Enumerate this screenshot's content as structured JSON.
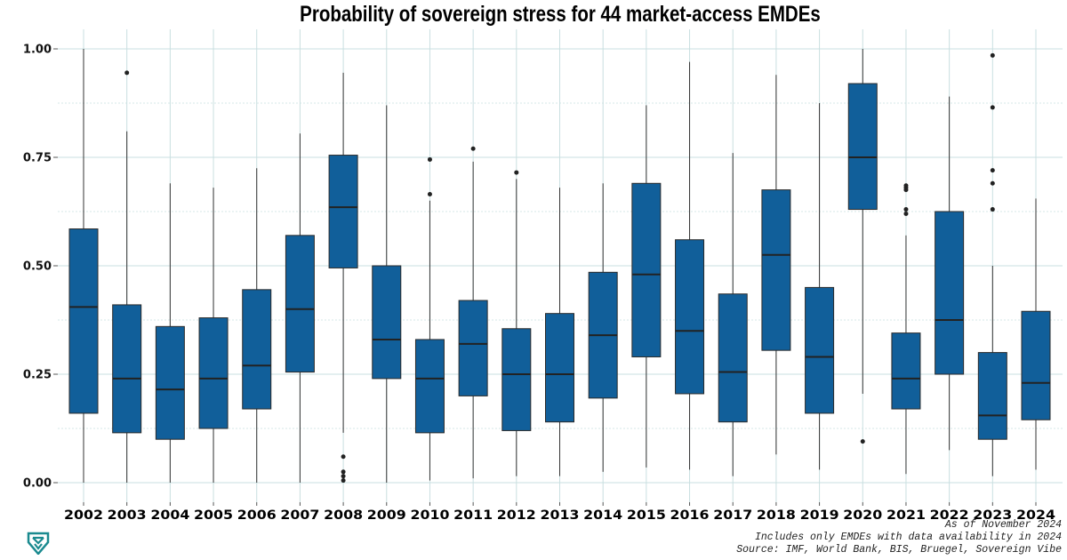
{
  "chart_data": {
    "type": "boxplot",
    "title": "Probability of sovereign stress for 44 market-access EMDEs",
    "xlabel": "",
    "ylabel": "",
    "ylim": [
      0,
      1
    ],
    "yticks": [
      "0.00",
      "0.25",
      "0.50",
      "0.75",
      "1.00"
    ],
    "grid": true,
    "legend": "none",
    "box_color": "#115f9a",
    "categories": [
      "2002",
      "2003",
      "2004",
      "2005",
      "2006",
      "2007",
      "2008",
      "2009",
      "2010",
      "2011",
      "2012",
      "2013",
      "2014",
      "2015",
      "2016",
      "2017",
      "2018",
      "2019",
      "2020",
      "2021",
      "2022",
      "2023",
      "2024"
    ],
    "boxes": [
      {
        "low": 0.0,
        "q1": 0.16,
        "median": 0.405,
        "q3": 0.585,
        "high": 1.0,
        "outliers": []
      },
      {
        "low": 0.0,
        "q1": 0.115,
        "median": 0.24,
        "q3": 0.41,
        "high": 0.81,
        "outliers": [
          0.945
        ]
      },
      {
        "low": 0.0,
        "q1": 0.1,
        "median": 0.215,
        "q3": 0.36,
        "high": 0.69,
        "outliers": []
      },
      {
        "low": 0.0,
        "q1": 0.125,
        "median": 0.24,
        "q3": 0.38,
        "high": 0.68,
        "outliers": []
      },
      {
        "low": 0.0,
        "q1": 0.17,
        "median": 0.27,
        "q3": 0.445,
        "high": 0.725,
        "outliers": []
      },
      {
        "low": 0.0,
        "q1": 0.255,
        "median": 0.4,
        "q3": 0.57,
        "high": 0.805,
        "outliers": []
      },
      {
        "low": 0.115,
        "q1": 0.495,
        "median": 0.635,
        "q3": 0.755,
        "high": 0.945,
        "outliers": [
          0.06,
          0.025,
          0.015,
          0.005
        ]
      },
      {
        "low": 0.0,
        "q1": 0.24,
        "median": 0.33,
        "q3": 0.5,
        "high": 0.87,
        "outliers": []
      },
      {
        "low": 0.005,
        "q1": 0.115,
        "median": 0.24,
        "q3": 0.33,
        "high": 0.65,
        "outliers": [
          0.665,
          0.745
        ]
      },
      {
        "low": 0.01,
        "q1": 0.2,
        "median": 0.32,
        "q3": 0.42,
        "high": 0.74,
        "outliers": [
          0.77
        ]
      },
      {
        "low": 0.015,
        "q1": 0.12,
        "median": 0.25,
        "q3": 0.355,
        "high": 0.7,
        "outliers": [
          0.715
        ]
      },
      {
        "low": 0.015,
        "q1": 0.14,
        "median": 0.25,
        "q3": 0.39,
        "high": 0.68,
        "outliers": []
      },
      {
        "low": 0.025,
        "q1": 0.195,
        "median": 0.34,
        "q3": 0.485,
        "high": 0.69,
        "outliers": []
      },
      {
        "low": 0.035,
        "q1": 0.29,
        "median": 0.48,
        "q3": 0.69,
        "high": 0.87,
        "outliers": []
      },
      {
        "low": 0.03,
        "q1": 0.205,
        "median": 0.35,
        "q3": 0.56,
        "high": 0.97,
        "outliers": []
      },
      {
        "low": 0.015,
        "q1": 0.14,
        "median": 0.255,
        "q3": 0.435,
        "high": 0.76,
        "outliers": []
      },
      {
        "low": 0.065,
        "q1": 0.305,
        "median": 0.525,
        "q3": 0.675,
        "high": 0.94,
        "outliers": []
      },
      {
        "low": 0.03,
        "q1": 0.16,
        "median": 0.29,
        "q3": 0.45,
        "high": 0.875,
        "outliers": []
      },
      {
        "low": 0.205,
        "q1": 0.63,
        "median": 0.75,
        "q3": 0.92,
        "high": 1.0,
        "outliers": [
          0.095
        ]
      },
      {
        "low": 0.02,
        "q1": 0.17,
        "median": 0.24,
        "q3": 0.345,
        "high": 0.57,
        "outliers": [
          0.62,
          0.63,
          0.675,
          0.68,
          0.685
        ]
      },
      {
        "low": 0.075,
        "q1": 0.25,
        "median": 0.375,
        "q3": 0.625,
        "high": 0.89,
        "outliers": []
      },
      {
        "low": 0.015,
        "q1": 0.1,
        "median": 0.155,
        "q3": 0.3,
        "high": 0.5,
        "outliers": [
          0.63,
          0.69,
          0.72,
          0.865,
          0.985
        ]
      },
      {
        "low": 0.03,
        "q1": 0.145,
        "median": 0.23,
        "q3": 0.395,
        "high": 0.655,
        "outliers": []
      }
    ]
  },
  "footnotes": [
    "As of November 2024",
    "Includes only EMDEs with data availability in 2024",
    "Source: IMF, World Bank, BIS, Bruegel, Sovereign Vibe"
  ],
  "logo_text": "Sovereign Vibe",
  "colors": {
    "grid": "#c9dfe0",
    "logo": "#1a8a8f"
  }
}
